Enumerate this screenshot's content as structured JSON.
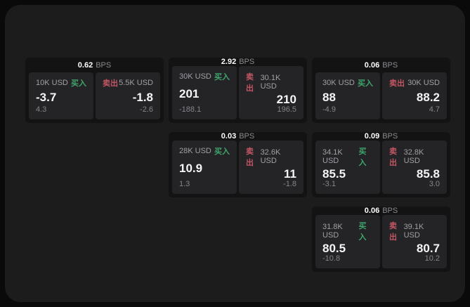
{
  "labels": {
    "bps_unit": "BPS",
    "buy": "买入",
    "sell": "卖出"
  },
  "colors": {
    "background": "#0a0a0a",
    "panel": "#1c1c1d",
    "card": "#131314",
    "tile": "#242427",
    "buy_green": "#3fa56c",
    "sell_red": "#c25663"
  },
  "cards": [
    {
      "bps": "0.62",
      "buy": {
        "amount": "10K USD",
        "price": "-3.7",
        "sub": "4.3"
      },
      "sell": {
        "amount": "5.5K USD",
        "price": "-1.8",
        "sub": "-2.6"
      }
    },
    {
      "bps": "2.92",
      "buy": {
        "amount": "30K USD",
        "price": "201",
        "sub": "-188.1"
      },
      "sell": {
        "amount": "30.1K USD",
        "price": "210",
        "sub": "196.5"
      }
    },
    {
      "bps": "0.06",
      "buy": {
        "amount": "30K USD",
        "price": "88",
        "sub": "-4.9"
      },
      "sell": {
        "amount": "30K USD",
        "price": "88.2",
        "sub": "4.7"
      }
    },
    {
      "bps": "0.03",
      "buy": {
        "amount": "28K USD",
        "price": "10.9",
        "sub": "1.3"
      },
      "sell": {
        "amount": "32.6K USD",
        "price": "11",
        "sub": "-1.8"
      }
    },
    {
      "bps": "0.09",
      "buy": {
        "amount": "34.1K USD",
        "price": "85.5",
        "sub": "-3.1"
      },
      "sell": {
        "amount": "32.8K USD",
        "price": "85.8",
        "sub": "3.0"
      }
    },
    {
      "bps": "0.06",
      "buy": {
        "amount": "31.8K USD",
        "price": "80.5",
        "sub": "-10.8"
      },
      "sell": {
        "amount": "39.1K USD",
        "price": "80.7",
        "sub": "10.2"
      }
    }
  ]
}
